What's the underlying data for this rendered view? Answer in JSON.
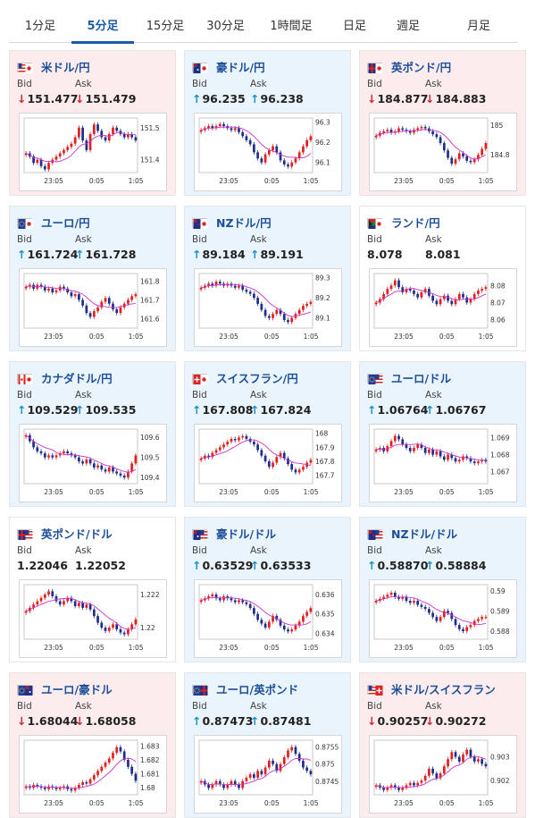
{
  "tabs": [
    {
      "label": "1分足",
      "active": false
    },
    {
      "label": "5分足",
      "active": true
    },
    {
      "label": "15分足",
      "active": false
    },
    {
      "label": "30分足",
      "active": false
    },
    {
      "label": "1時間足",
      "active": false
    },
    {
      "label": "日足",
      "active": false
    },
    {
      "label": "週足",
      "active": false
    },
    {
      "label": "月足",
      "active": false
    }
  ],
  "colors": {
    "accent": "#1a5aa8",
    "down": "#d9262e",
    "up": "#1b8fcd",
    "bull_candle": "#e0201d",
    "bear_candle": "#1d2d8a",
    "ma_line": "#cc33cc"
  },
  "cards": [
    {
      "name": "米ドル/円",
      "flag": "us-jp",
      "trend": "down",
      "bid_label": "Bid",
      "ask_label": "Ask",
      "bid": "151.477",
      "ask": "151.479",
      "chart_data": {
        "type": "candlestick",
        "x_ticks": [
          "23:05",
          "0:05",
          "1:05"
        ],
        "y_ticks": [
          "151.5",
          "151.4"
        ],
        "ylim": [
          151.36,
          151.53
        ],
        "close": [
          151.42,
          151.41,
          151.39,
          151.4,
          151.38,
          151.37,
          151.39,
          151.4,
          151.41,
          151.42,
          151.43,
          151.44,
          151.45,
          151.47,
          151.5,
          151.46,
          151.43,
          151.48,
          151.51,
          151.49,
          151.47,
          151.46,
          151.48,
          151.5,
          151.49,
          151.48,
          151.47,
          151.48,
          151.47,
          151.46
        ]
      }
    },
    {
      "name": "豪ドル/円",
      "flag": "au-jp",
      "trend": "up",
      "bid_label": "Bid",
      "ask_label": "Ask",
      "bid": "96.235",
      "ask": "96.238",
      "chart_data": {
        "type": "candlestick",
        "x_ticks": [
          "23:05",
          "0:05",
          "1:05"
        ],
        "y_ticks": [
          "96.3",
          "96.2",
          "96.1"
        ],
        "ylim": [
          96.05,
          96.32
        ],
        "close": [
          96.26,
          96.27,
          96.28,
          96.27,
          96.28,
          96.29,
          96.28,
          96.27,
          96.26,
          96.27,
          96.25,
          96.23,
          96.21,
          96.19,
          96.15,
          96.12,
          96.1,
          96.14,
          96.16,
          96.18,
          96.15,
          96.11,
          96.09,
          96.08,
          96.1,
          96.12,
          96.15,
          96.18,
          96.21,
          96.23
        ]
      }
    },
    {
      "name": "英ポンド/円",
      "flag": "gb-jp",
      "trend": "down",
      "bid_label": "Bid",
      "ask_label": "Ask",
      "bid": "184.877",
      "ask": "184.883",
      "chart_data": {
        "type": "candlestick",
        "x_ticks": [
          "23:05",
          "0:05",
          "1:05"
        ],
        "y_ticks": [
          "185",
          "184.8"
        ],
        "ylim": [
          184.68,
          185.05
        ],
        "close": [
          184.93,
          184.95,
          184.96,
          184.97,
          184.95,
          184.96,
          184.98,
          184.97,
          184.96,
          184.95,
          184.97,
          184.98,
          184.99,
          184.98,
          184.96,
          184.94,
          184.92,
          184.88,
          184.83,
          184.78,
          184.74,
          184.77,
          184.81,
          184.79,
          184.76,
          184.75,
          184.77,
          184.8,
          184.84,
          184.88
        ]
      }
    },
    {
      "name": "ユーロ/円",
      "flag": "eu-jp",
      "trend": "up",
      "bid_label": "Bid",
      "ask_label": "Ask",
      "bid": "161.724",
      "ask": "161.728",
      "chart_data": {
        "type": "candlestick",
        "x_ticks": [
          "23:05",
          "0:05",
          "1:05"
        ],
        "y_ticks": [
          "161.8",
          "161.7",
          "161.6"
        ],
        "ylim": [
          161.55,
          161.84
        ],
        "close": [
          161.77,
          161.78,
          161.76,
          161.78,
          161.77,
          161.75,
          161.76,
          161.74,
          161.75,
          161.77,
          161.76,
          161.74,
          161.72,
          161.73,
          161.7,
          161.67,
          161.63,
          161.61,
          161.64,
          161.66,
          161.69,
          161.71,
          161.68,
          161.65,
          161.63,
          161.66,
          161.68,
          161.7,
          161.72,
          161.73
        ]
      }
    },
    {
      "name": "NZドル/円",
      "flag": "nz-jp",
      "trend": "up",
      "bid_label": "Bid",
      "ask_label": "Ask",
      "bid": "89.184",
      "ask": "89.191",
      "chart_data": {
        "type": "candlestick",
        "x_ticks": [
          "23:05",
          "0:05",
          "1:05"
        ],
        "y_ticks": [
          "89.3",
          "89.2",
          "89.1"
        ],
        "ylim": [
          89.05,
          89.32
        ],
        "close": [
          89.25,
          89.26,
          89.27,
          89.26,
          89.28,
          89.27,
          89.26,
          89.27,
          89.26,
          89.25,
          89.26,
          89.24,
          89.23,
          89.22,
          89.2,
          89.17,
          89.14,
          89.11,
          89.1,
          89.12,
          89.14,
          89.12,
          89.09,
          89.08,
          89.1,
          89.12,
          89.14,
          89.16,
          89.17,
          89.18
        ]
      }
    },
    {
      "name": "ランド/円",
      "flag": "za-jp",
      "trend": "flat",
      "bid_label": "Bid",
      "ask_label": "Ask",
      "bid": "8.078",
      "ask": "8.081",
      "chart_data": {
        "type": "candlestick",
        "x_ticks": [
          "23:05",
          "0:05",
          "1:05"
        ],
        "y_ticks": [
          "8.08",
          "8.07",
          "8.06"
        ],
        "ylim": [
          8.055,
          8.087
        ],
        "close": [
          8.07,
          8.072,
          8.075,
          8.078,
          8.08,
          8.083,
          8.079,
          8.076,
          8.078,
          8.077,
          8.075,
          8.073,
          8.076,
          8.078,
          8.074,
          8.071,
          8.069,
          8.072,
          8.074,
          8.071,
          8.069,
          8.072,
          8.075,
          8.073,
          8.07,
          8.072,
          8.075,
          8.077,
          8.078,
          8.079
        ]
      }
    },
    {
      "name": "カナダドル/円",
      "flag": "ca-jp",
      "trend": "up",
      "bid_label": "Bid",
      "ask_label": "Ask",
      "bid": "109.529",
      "ask": "109.535",
      "chart_data": {
        "type": "candlestick",
        "x_ticks": [
          "23:05",
          "0:05",
          "1:05"
        ],
        "y_ticks": [
          "109.6",
          "109.5",
          "109.4"
        ],
        "ylim": [
          109.37,
          109.64
        ],
        "close": [
          109.61,
          109.58,
          109.55,
          109.53,
          109.52,
          109.5,
          109.51,
          109.5,
          109.51,
          109.52,
          109.53,
          109.52,
          109.51,
          109.5,
          109.48,
          109.47,
          109.49,
          109.47,
          109.45,
          109.46,
          109.44,
          109.43,
          109.45,
          109.43,
          109.42,
          109.41,
          109.4,
          109.43,
          109.47,
          109.51
        ]
      }
    },
    {
      "name": "スイスフラン/円",
      "flag": "ch-jp",
      "trend": "up",
      "bid_label": "Bid",
      "ask_label": "Ask",
      "bid": "167.808",
      "ask": "167.824",
      "chart_data": {
        "type": "candlestick",
        "x_ticks": [
          "23:05",
          "0:05",
          "1:05"
        ],
        "y_ticks": [
          "168",
          "167.9",
          "167.8",
          "167.7"
        ],
        "ylim": [
          167.64,
          168.03
        ],
        "close": [
          167.82,
          167.84,
          167.83,
          167.86,
          167.88,
          167.9,
          167.92,
          167.94,
          167.96,
          167.95,
          167.97,
          167.98,
          167.96,
          167.94,
          167.92,
          167.88,
          167.84,
          167.8,
          167.76,
          167.79,
          167.83,
          167.86,
          167.82,
          167.78,
          167.74,
          167.72,
          167.74,
          167.76,
          167.79,
          167.81
        ]
      }
    },
    {
      "name": "ユーロ/ドル",
      "flag": "eu-us",
      "trend": "up",
      "bid_label": "Bid",
      "ask_label": "Ask",
      "bid": "1.06764",
      "ask": "1.06767",
      "chart_data": {
        "type": "candlestick",
        "x_ticks": [
          "23:05",
          "0:05",
          "1:05"
        ],
        "y_ticks": [
          "1.069",
          "1.068",
          "1.067"
        ],
        "ylim": [
          1.0663,
          1.0695
        ],
        "close": [
          1.0683,
          1.0684,
          1.0682,
          1.0685,
          1.0688,
          1.0691,
          1.0689,
          1.0686,
          1.0684,
          1.0682,
          1.0684,
          1.0686,
          1.0684,
          1.0681,
          1.0683,
          1.068,
          1.0682,
          1.0679,
          1.0677,
          1.068,
          1.0678,
          1.0676,
          1.0677,
          1.0679,
          1.0678,
          1.0676,
          1.0675,
          1.0676,
          1.0677,
          1.0676
        ]
      }
    },
    {
      "name": "英ポンド/ドル",
      "flag": "gb-us",
      "trend": "flat",
      "bid_label": "Bid",
      "ask_label": "Ask",
      "bid": "1.22046",
      "ask": "1.22052",
      "chart_data": {
        "type": "candlestick",
        "x_ticks": [
          "23:05",
          "0:05",
          "1:05"
        ],
        "y_ticks": [
          "1.222",
          "1.22"
        ],
        "ylim": [
          1.2193,
          1.2226
        ],
        "close": [
          1.221,
          1.2212,
          1.2214,
          1.2216,
          1.2218,
          1.222,
          1.2222,
          1.2219,
          1.2216,
          1.2214,
          1.2216,
          1.2218,
          1.2216,
          1.2213,
          1.2215,
          1.2212,
          1.2214,
          1.2211,
          1.2207,
          1.2203,
          1.22,
          1.2198,
          1.22,
          1.2202,
          1.2199,
          1.2197,
          1.2196,
          1.2199,
          1.2202,
          1.2205
        ]
      }
    },
    {
      "name": "豪ドル/ドル",
      "flag": "au-us",
      "trend": "up",
      "bid_label": "Bid",
      "ask_label": "Ask",
      "bid": "0.63529",
      "ask": "0.63533",
      "chart_data": {
        "type": "candlestick",
        "x_ticks": [
          "23:05",
          "0:05",
          "1:05"
        ],
        "y_ticks": [
          "0.636",
          "0.635",
          "0.634"
        ],
        "ylim": [
          0.6337,
          0.6365
        ],
        "close": [
          0.6357,
          0.6358,
          0.6359,
          0.636,
          0.6358,
          0.6357,
          0.6359,
          0.6358,
          0.6357,
          0.6356,
          0.6357,
          0.6356,
          0.6355,
          0.6353,
          0.635,
          0.6347,
          0.6345,
          0.6343,
          0.6346,
          0.6349,
          0.6347,
          0.6344,
          0.6342,
          0.6341,
          0.6342,
          0.6344,
          0.6346,
          0.6349,
          0.6351,
          0.6353
        ]
      }
    },
    {
      "name": "NZドル/ドル",
      "flag": "nz-us",
      "trend": "up",
      "bid_label": "Bid",
      "ask_label": "Ask",
      "bid": "0.58870",
      "ask": "0.58884",
      "chart_data": {
        "type": "candlestick",
        "x_ticks": [
          "23:05",
          "0:05",
          "1:05"
        ],
        "y_ticks": [
          "0.59",
          "0.589",
          "0.588"
        ],
        "ylim": [
          0.5876,
          0.5903
        ],
        "close": [
          0.5895,
          0.5896,
          0.5897,
          0.5898,
          0.5899,
          0.5897,
          0.5896,
          0.5897,
          0.5895,
          0.5894,
          0.5895,
          0.5893,
          0.5892,
          0.5891,
          0.5889,
          0.5887,
          0.5885,
          0.5887,
          0.589,
          0.5889,
          0.5886,
          0.5883,
          0.5881,
          0.588,
          0.5882,
          0.5883,
          0.5885,
          0.5886,
          0.5887,
          0.5887
        ]
      }
    },
    {
      "name": "ユーロ/豪ドル",
      "flag": "eu-au",
      "trend": "down",
      "bid_label": "Bid",
      "ask_label": "Ask",
      "bid": "1.68044",
      "ask": "1.68058",
      "chart_data": {
        "type": "candlestick",
        "x_ticks": [
          "23:05",
          "0:05",
          "1:05"
        ],
        "y_ticks": [
          "1.683",
          "1.682",
          "1.681",
          "1.68"
        ],
        "ylim": [
          1.6795,
          1.6834
        ],
        "close": [
          1.6801,
          1.68,
          1.6802,
          1.6801,
          1.68,
          1.6799,
          1.6801,
          1.68,
          1.6799,
          1.68,
          1.6801,
          1.6799,
          1.6798,
          1.68,
          1.6802,
          1.6804,
          1.6803,
          1.6806,
          1.6809,
          1.6812,
          1.6815,
          1.6818,
          1.6821,
          1.6825,
          1.6829,
          1.6826,
          1.682,
          1.6815,
          1.681,
          1.6805
        ]
      }
    },
    {
      "name": "ユーロ/英ポンド",
      "flag": "eu-gb",
      "trend": "up",
      "bid_label": "Bid",
      "ask_label": "Ask",
      "bid": "0.87473",
      "ask": "0.87481",
      "chart_data": {
        "type": "candlestick",
        "x_ticks": [
          "23:05",
          "0:05",
          "1:05"
        ],
        "y_ticks": [
          "0.8755",
          "0.875",
          "0.8745"
        ],
        "ylim": [
          0.8741,
          0.8757
        ],
        "close": [
          0.8745,
          0.8744,
          0.8743,
          0.8744,
          0.8745,
          0.8744,
          0.8743,
          0.8744,
          0.8745,
          0.8744,
          0.8743,
          0.8745,
          0.8746,
          0.8747,
          0.8746,
          0.8748,
          0.8747,
          0.8749,
          0.8751,
          0.875,
          0.8748,
          0.875,
          0.8752,
          0.8754,
          0.8755,
          0.8753,
          0.8751,
          0.8749,
          0.8748,
          0.8747
        ]
      }
    },
    {
      "name": "米ドル/スイスフラン",
      "flag": "us-ch",
      "trend": "down",
      "bid_label": "Bid",
      "ask_label": "Ask",
      "bid": "0.90257",
      "ask": "0.90272",
      "chart_data": {
        "type": "candlestick",
        "x_ticks": [
          "23:05",
          "0:05",
          "1:05"
        ],
        "y_ticks": [
          "0.903",
          "0.902"
        ],
        "ylim": [
          0.9014,
          0.9037
        ],
        "close": [
          0.9018,
          0.9017,
          0.9016,
          0.9017,
          0.9018,
          0.9017,
          0.9016,
          0.9017,
          0.9018,
          0.9019,
          0.9018,
          0.9019,
          0.902,
          0.9022,
          0.9025,
          0.9023,
          0.9021,
          0.9023,
          0.9026,
          0.9029,
          0.9032,
          0.903,
          0.9028,
          0.9031,
          0.9033,
          0.903,
          0.9028,
          0.9029,
          0.9027,
          0.9026
        ]
      }
    }
  ]
}
